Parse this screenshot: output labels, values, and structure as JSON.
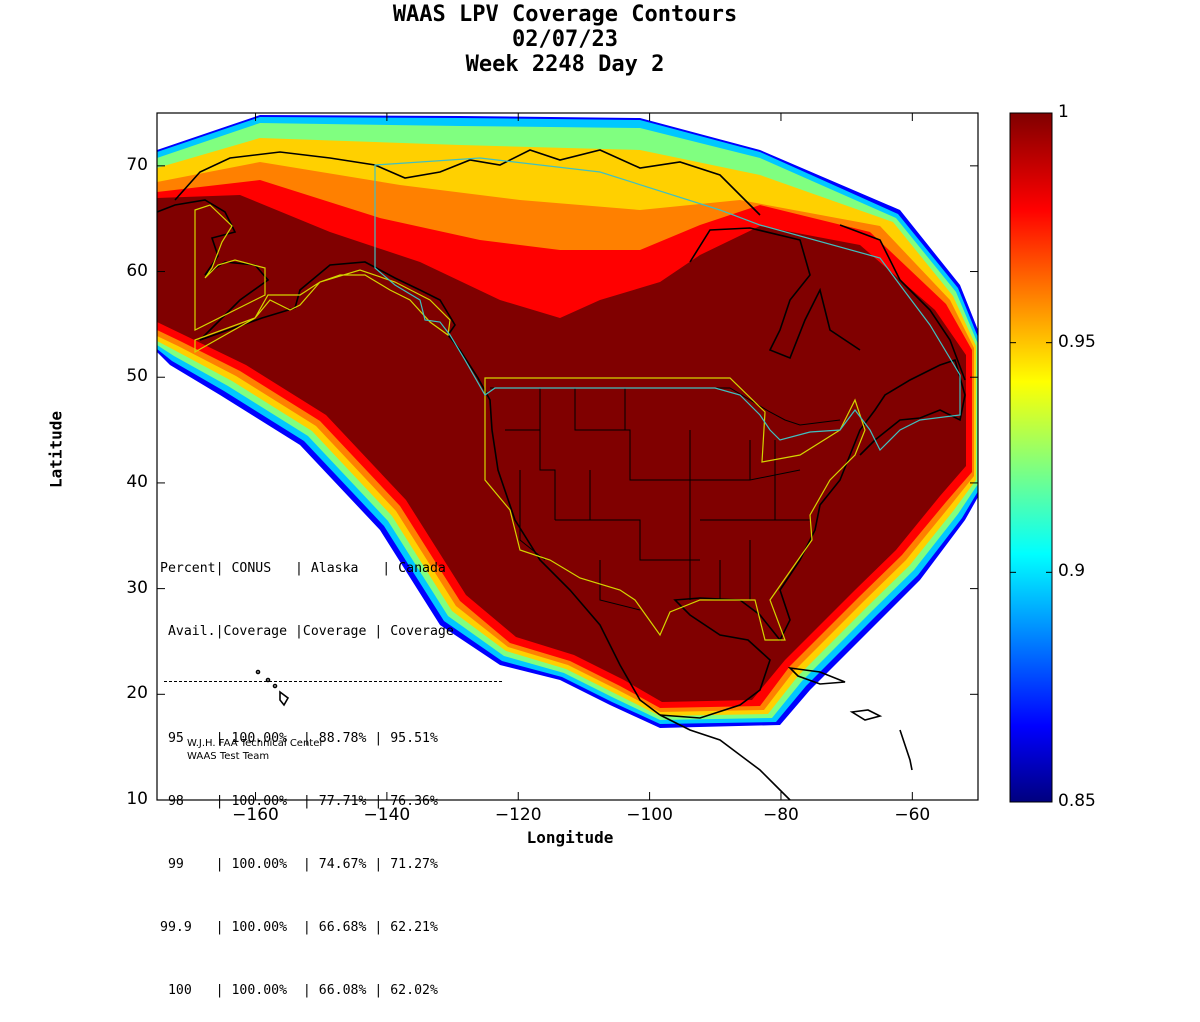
{
  "title": {
    "line1": "WAAS LPV Coverage Contours",
    "line2": "02/07/23",
    "line3": "Week 2248 Day 2"
  },
  "axes": {
    "xlabel": "Longitude",
    "ylabel": "Latitude",
    "xticks": [
      -160,
      -140,
      -120,
      -100,
      -80,
      -60
    ],
    "yticks": [
      10,
      20,
      30,
      40,
      50,
      60,
      70
    ],
    "xrange": [
      -175,
      -50
    ],
    "yrange": [
      10,
      75
    ]
  },
  "colorbar": {
    "min": 0.85,
    "max": 1,
    "tick_labels": [
      "1",
      "0.95",
      "0.9",
      "0.85"
    ],
    "tick_values": [
      1,
      0.95,
      0.9,
      0.85
    ],
    "colormap": "jet"
  },
  "stats": {
    "header1": "Percent| CONUS   | Alaska   | Canada",
    "header2": " Avail.|Coverage |Coverage | Coverage",
    "rows": [
      " 95    | 100.00%  | 88.78% | 95.51%",
      " 98    | 100.00%  | 77.71% | 76.36%",
      " 99    | 100.00%  | 74.67% | 71.27%",
      "99.9   | 100.00%  | 66.68% | 62.21%",
      " 100   | 100.00%  | 66.08% | 62.02%"
    ]
  },
  "credit": {
    "line1": "W.J.H. FAA Technical Center",
    "line2": "WAAS Test Team"
  },
  "colors": {
    "full_coverage": "#800000",
    "service_boundary": "#d4d400",
    "canada_boundary": "#40c0c0"
  }
}
